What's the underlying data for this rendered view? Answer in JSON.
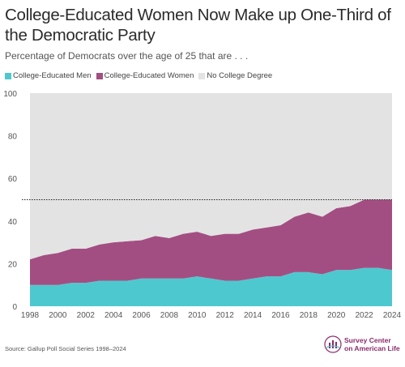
{
  "title": "College-Educated Women Now Make up One-Third of the Democratic Party",
  "subtitle": "Percentage of Democrats over the age of 25 that are . . .",
  "legend": [
    {
      "label": "College-Educated Men",
      "color": "#4ec8cf"
    },
    {
      "label": "College-Educated Women",
      "color": "#a34e82"
    },
    {
      "label": "No College Degree",
      "color": "#e3e3e3"
    }
  ],
  "source": "Source: Gallup Poll Social Series 1998–2024",
  "logo": {
    "line1": "Survey Center",
    "line2": "on American Life",
    "icon": "bar-chart-logo-icon"
  },
  "chart_data": {
    "type": "area",
    "stacked": true,
    "x": [
      1998,
      1999,
      2000,
      2001,
      2002,
      2003,
      2004,
      2005,
      2006,
      2007,
      2008,
      2009,
      2010,
      2011,
      2012,
      2013,
      2014,
      2015,
      2016,
      2017,
      2018,
      2019,
      2020,
      2021,
      2022,
      2023,
      2024
    ],
    "series": [
      {
        "name": "College-Educated Men",
        "color": "#4ec8cf",
        "values": [
          10,
          10,
          10,
          11,
          11,
          12,
          12,
          12,
          13,
          13,
          13,
          13,
          14,
          13,
          12,
          12,
          13,
          14,
          14,
          16,
          16,
          15,
          17,
          17,
          18,
          18,
          17
        ]
      },
      {
        "name": "College-Educated Women",
        "color": "#a34e82",
        "values": [
          12,
          14,
          15,
          16,
          16,
          17,
          18,
          18.5,
          18,
          20,
          19,
          21,
          21,
          20,
          22,
          22,
          23,
          23,
          24,
          26,
          28,
          27,
          29,
          30,
          32,
          32,
          33
        ]
      },
      {
        "name": "No College Degree",
        "color": "#e3e3e3",
        "values": [
          78,
          76,
          75,
          73,
          73,
          71,
          70,
          69.5,
          69,
          67,
          68,
          66,
          65,
          67,
          66,
          66,
          64,
          63,
          62,
          58,
          56,
          58,
          54,
          53,
          50,
          50,
          50
        ]
      }
    ],
    "xticks": [
      1998,
      2000,
      2002,
      2004,
      2006,
      2008,
      2010,
      2012,
      2014,
      2016,
      2018,
      2020,
      2022,
      2024
    ],
    "yticks": [
      0,
      20,
      40,
      60,
      80,
      100
    ],
    "ylim": [
      0,
      100
    ],
    "xlim": [
      1998,
      2024
    ],
    "reference_line": {
      "y": 50,
      "style": "dotted"
    },
    "xlabel": "",
    "ylabel": ""
  }
}
